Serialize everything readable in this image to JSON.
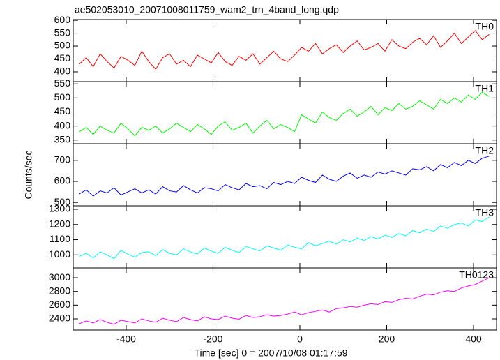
{
  "chart_data": [
    {
      "type": "line",
      "title": "ae502053010_20071008011759_wam2_trn_4band_long.qdp",
      "x": [
        -508,
        -492,
        -476,
        -460,
        -444,
        -428,
        -412,
        -396,
        -380,
        -364,
        -348,
        -332,
        -316,
        -300,
        -284,
        -268,
        -252,
        -236,
        -220,
        -204,
        -188,
        -172,
        -156,
        -140,
        -124,
        -108,
        -92,
        -76,
        -60,
        -44,
        -28,
        -12,
        4,
        20,
        36,
        52,
        68,
        84,
        100,
        116,
        132,
        148,
        164,
        180,
        196,
        212,
        228,
        244,
        260,
        276,
        292,
        308,
        324,
        340,
        356,
        372,
        388,
        404,
        420,
        436
      ],
      "series": [
        {
          "name": "TH0",
          "color": "#ff0000",
          "values": [
            430,
            455,
            420,
            470,
            440,
            415,
            460,
            445,
            425,
            480,
            440,
            410,
            455,
            470,
            430,
            445,
            420,
            465,
            450,
            435,
            475,
            440,
            425,
            460,
            445,
            470,
            430,
            455,
            480,
            450,
            440,
            465,
            495,
            480,
            510,
            470,
            490,
            505,
            475,
            500,
            520,
            485,
            495,
            510,
            480,
            525,
            500,
            490,
            515,
            530,
            505,
            540,
            495,
            520,
            550,
            510,
            535,
            560,
            525,
            545
          ]
        }
      ],
      "xlim": [
        -522,
        453
      ],
      "xticks": [
        -400,
        -200,
        0,
        200,
        400
      ],
      "ylim": [
        362,
        603
      ],
      "yticks": [
        400,
        450,
        500,
        550,
        600
      ]
    },
    {
      "type": "line",
      "x": [
        -508,
        -492,
        -476,
        -460,
        -444,
        -428,
        -412,
        -396,
        -380,
        -364,
        -348,
        -332,
        -316,
        -300,
        -284,
        -268,
        -252,
        -236,
        -220,
        -204,
        -188,
        -172,
        -156,
        -140,
        -124,
        -108,
        -92,
        -76,
        -60,
        -44,
        -28,
        -12,
        4,
        20,
        36,
        52,
        68,
        84,
        100,
        116,
        132,
        148,
        164,
        180,
        196,
        212,
        228,
        244,
        260,
        276,
        292,
        308,
        324,
        340,
        356,
        372,
        388,
        404,
        420,
        436
      ],
      "series": [
        {
          "name": "TH1",
          "color": "#00ff00",
          "values": [
            380,
            395,
            370,
            400,
            385,
            375,
            410,
            390,
            365,
            395,
            385,
            400,
            375,
            390,
            410,
            395,
            380,
            405,
            390,
            370,
            400,
            415,
            385,
            395,
            410,
            375,
            400,
            420,
            390,
            405,
            395,
            380,
            440,
            425,
            410,
            450,
            430,
            420,
            445,
            460,
            435,
            450,
            470,
            440,
            465,
            455,
            480,
            460,
            470,
            490,
            475,
            460,
            495,
            480,
            500,
            485,
            510,
            495,
            520,
            505
          ]
        }
      ],
      "xlim": [
        -522,
        453
      ],
      "xticks": [
        -400,
        -200,
        0,
        200,
        400
      ],
      "ylim": [
        337,
        558
      ],
      "yticks": [
        350,
        400,
        450,
        500,
        550
      ]
    },
    {
      "type": "line",
      "ylabel": "Counts/sec",
      "x": [
        -508,
        -492,
        -476,
        -460,
        -444,
        -428,
        -412,
        -396,
        -380,
        -364,
        -348,
        -332,
        -316,
        -300,
        -284,
        -268,
        -252,
        -236,
        -220,
        -204,
        -188,
        -172,
        -156,
        -140,
        -124,
        -108,
        -92,
        -76,
        -60,
        -44,
        -28,
        -12,
        4,
        20,
        36,
        52,
        68,
        84,
        100,
        116,
        132,
        148,
        164,
        180,
        196,
        212,
        228,
        244,
        260,
        276,
        292,
        308,
        324,
        340,
        356,
        372,
        388,
        404,
        420,
        436
      ],
      "series": [
        {
          "name": "TH2",
          "color": "#0000ff",
          "values": [
            540,
            560,
            530,
            555,
            545,
            570,
            535,
            550,
            565,
            545,
            560,
            540,
            575,
            555,
            550,
            580,
            560,
            545,
            570,
            565,
            555,
            585,
            570,
            560,
            590,
            575,
            580,
            565,
            595,
            585,
            600,
            590,
            620,
            605,
            595,
            630,
            610,
            600,
            625,
            640,
            615,
            630,
            620,
            645,
            635,
            650,
            640,
            630,
            660,
            655,
            670,
            650,
            680,
            665,
            690,
            675,
            700,
            685,
            710,
            720
          ]
        }
      ],
      "xlim": [
        -522,
        453
      ],
      "xticks": [
        -400,
        -200,
        0,
        200,
        400
      ],
      "ylim": [
        484,
        779
      ],
      "yticks": [
        500,
        600,
        700
      ]
    },
    {
      "type": "line",
      "x": [
        -508,
        -492,
        -476,
        -460,
        -444,
        -428,
        -412,
        -396,
        -380,
        -364,
        -348,
        -332,
        -316,
        -300,
        -284,
        -268,
        -252,
        -236,
        -220,
        -204,
        -188,
        -172,
        -156,
        -140,
        -124,
        -108,
        -92,
        -76,
        -60,
        -44,
        -28,
        -12,
        4,
        20,
        36,
        52,
        68,
        84,
        100,
        116,
        132,
        148,
        164,
        180,
        196,
        212,
        228,
        244,
        260,
        276,
        292,
        308,
        324,
        340,
        356,
        372,
        388,
        404,
        420,
        436
      ],
      "series": [
        {
          "name": "TH3",
          "color": "#00ffff",
          "values": [
            990,
            1010,
            980,
            1020,
            1000,
            975,
            1030,
            1005,
            985,
            1015,
            1020,
            995,
            1035,
            1010,
            1000,
            1040,
            1020,
            1005,
            1045,
            1025,
            1010,
            1050,
            1030,
            1015,
            1055,
            1040,
            1025,
            1060,
            1045,
            1030,
            1065,
            1050,
            1040,
            1080,
            1060,
            1075,
            1090,
            1070,
            1100,
            1085,
            1110,
            1095,
            1120,
            1105,
            1130,
            1115,
            1140,
            1125,
            1160,
            1145,
            1170,
            1155,
            1190,
            1175,
            1200,
            1210,
            1190,
            1230,
            1220,
            1250
          ]
        }
      ],
      "xlim": [
        -522,
        453
      ],
      "xticks": [
        -400,
        -200,
        0,
        200,
        400
      ],
      "ylim": [
        914,
        1323
      ],
      "yticks": [
        1000,
        1100,
        1200,
        1300
      ]
    },
    {
      "type": "line",
      "xlabel": "Time [sec] 0 = 2007/10/08 01:17:59",
      "x": [
        -508,
        -492,
        -476,
        -460,
        -444,
        -428,
        -412,
        -396,
        -380,
        -364,
        -348,
        -332,
        -316,
        -300,
        -284,
        -268,
        -252,
        -236,
        -220,
        -204,
        -188,
        -172,
        -156,
        -140,
        -124,
        -108,
        -92,
        -76,
        -60,
        -44,
        -28,
        -12,
        4,
        20,
        36,
        52,
        68,
        84,
        100,
        116,
        132,
        148,
        164,
        180,
        196,
        212,
        228,
        244,
        260,
        276,
        292,
        308,
        324,
        340,
        356,
        372,
        388,
        404,
        420,
        436
      ],
      "series": [
        {
          "name": "TH0123",
          "color": "#ff00ff",
          "values": [
            2330,
            2370,
            2340,
            2390,
            2350,
            2320,
            2380,
            2360,
            2340,
            2400,
            2370,
            2350,
            2410,
            2380,
            2360,
            2420,
            2390,
            2370,
            2430,
            2400,
            2390,
            2440,
            2410,
            2395,
            2450,
            2420,
            2430,
            2460,
            2440,
            2450,
            2470,
            2500,
            2460,
            2490,
            2510,
            2530,
            2500,
            2550,
            2560,
            2580,
            2570,
            2600,
            2620,
            2610,
            2650,
            2640,
            2680,
            2700,
            2690,
            2730,
            2760,
            2750,
            2790,
            2810,
            2800,
            2850,
            2880,
            2900,
            2950,
            3000
          ]
        }
      ],
      "xlim": [
        -522,
        453
      ],
      "xticks": [
        -400,
        -200,
        0,
        200,
        400
      ],
      "ylim": [
        2237,
        3143
      ],
      "yticks": [
        2400,
        2600,
        2800,
        3000
      ]
    }
  ]
}
